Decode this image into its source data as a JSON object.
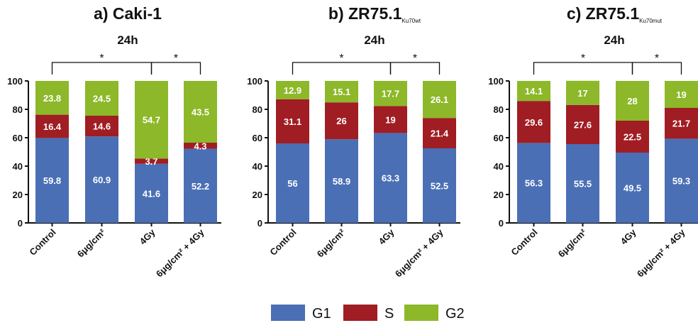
{
  "colors": {
    "G1": "#4a6fb5",
    "S": "#a01d23",
    "G2": "#8db829"
  },
  "legend": {
    "items": [
      {
        "label": "G1",
        "color": "#4a6fb5"
      },
      {
        "label": "S",
        "color": "#a01d23"
      },
      {
        "label": "G2",
        "color": "#8db829"
      }
    ]
  },
  "chart_data": [
    {
      "type": "bar",
      "stacked": true,
      "title": "a) Caki-1",
      "title_subscript": "",
      "subtitle": "24h",
      "categories": [
        "Control",
        "6μg/cm²",
        "4Gy",
        "6μg/cm² + 4Gy"
      ],
      "ylim": [
        0,
        100
      ],
      "yticks": [
        "0",
        "20",
        "40",
        "60",
        "80",
        "100"
      ],
      "series": [
        {
          "name": "G1",
          "values": [
            59.8,
            60.9,
            41.6,
            52.2
          ],
          "labels": [
            "59.8",
            "60.9",
            "41.6",
            "52.2"
          ]
        },
        {
          "name": "S",
          "values": [
            16.4,
            14.6,
            3.7,
            4.3
          ],
          "labels": [
            "16.4",
            "14.6",
            "3.7",
            "4.3"
          ]
        },
        {
          "name": "G2",
          "values": [
            23.8,
            24.5,
            54.7,
            43.5
          ],
          "labels": [
            "23.8",
            "24.5",
            "54.7",
            "43.5"
          ]
        }
      ],
      "significance": [
        {
          "from": 0,
          "to": 2,
          "label": "*"
        },
        {
          "from": 2,
          "to": 3,
          "label": "*"
        }
      ]
    },
    {
      "type": "bar",
      "stacked": true,
      "title": "b) ZR75.1",
      "title_subscript": "Ku70wt",
      "subtitle": "24h",
      "categories": [
        "Control",
        "6μg/cm²",
        "4Gy",
        "6μg/cm² + 4Gy"
      ],
      "ylim": [
        0,
        100
      ],
      "yticks": [
        "0",
        "20",
        "40",
        "60",
        "80",
        "100"
      ],
      "series": [
        {
          "name": "G1",
          "values": [
            56,
            58.9,
            63.3,
            52.5
          ],
          "labels": [
            "56",
            "58.9",
            "63.3",
            "52.5"
          ]
        },
        {
          "name": "S",
          "values": [
            31.1,
            26,
            19,
            21.4
          ],
          "labels": [
            "31.1",
            "26",
            "19",
            "21.4"
          ]
        },
        {
          "name": "G2",
          "values": [
            12.9,
            15.1,
            17.7,
            26.1
          ],
          "labels": [
            "12.9",
            "15.1",
            "17.7",
            "26.1"
          ]
        }
      ],
      "significance": [
        {
          "from": 0,
          "to": 2,
          "label": "*"
        },
        {
          "from": 2,
          "to": 3,
          "label": "*"
        }
      ]
    },
    {
      "type": "bar",
      "stacked": true,
      "title": "c) ZR75.1",
      "title_subscript": "Ku70mut",
      "subtitle": "24h",
      "categories": [
        "Control",
        "6μg/cm²",
        "4Gy",
        "6μg/cm² + 4Gy"
      ],
      "ylim": [
        0,
        100
      ],
      "yticks": [
        "0",
        "20",
        "40",
        "60",
        "80",
        "100"
      ],
      "series": [
        {
          "name": "G1",
          "values": [
            56.3,
            55.5,
            49.5,
            59.3
          ],
          "labels": [
            "56.3",
            "55.5",
            "49.5",
            "59.3"
          ]
        },
        {
          "name": "S",
          "values": [
            29.6,
            27.6,
            22.5,
            21.7
          ],
          "labels": [
            "29.6",
            "27.6",
            "22.5",
            "21.7"
          ]
        },
        {
          "name": "G2",
          "values": [
            14.1,
            17,
            28,
            19
          ],
          "labels": [
            "14.1",
            "17",
            "28",
            "19"
          ]
        }
      ],
      "significance": [
        {
          "from": 0,
          "to": 2,
          "label": "*"
        },
        {
          "from": 2,
          "to": 3,
          "label": "*"
        }
      ]
    }
  ]
}
